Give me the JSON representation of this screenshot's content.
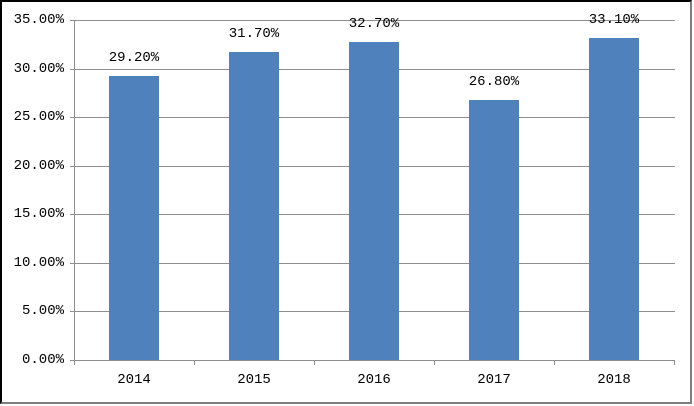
{
  "window": {
    "background": "#FFFFFF",
    "border_top_left_color": "#000000",
    "border_bottom_right_color": "#7F7F7F"
  },
  "chart_data": {
    "type": "bar",
    "title": "",
    "xlabel": "",
    "ylabel": "",
    "categories": [
      "2014",
      "2015",
      "2016",
      "2017",
      "2018"
    ],
    "values": [
      29.2,
      31.7,
      32.7,
      26.8,
      33.1
    ],
    "data_labels": [
      "29.20%",
      "31.70%",
      "32.70%",
      "26.80%",
      "33.10%"
    ],
    "ylim": [
      0,
      35
    ],
    "ytick_step": 5,
    "ytick_labels": [
      "0.00%",
      "5.00%",
      "10.00%",
      "15.00%",
      "20.00%",
      "25.00%",
      "30.00%",
      "35.00%"
    ],
    "grid": true,
    "legend": false,
    "bar_color": "#4F81BD",
    "gridline_color": "#8E8E8E",
    "axis_color": "#8E8E8E",
    "label_color": "#000000"
  }
}
